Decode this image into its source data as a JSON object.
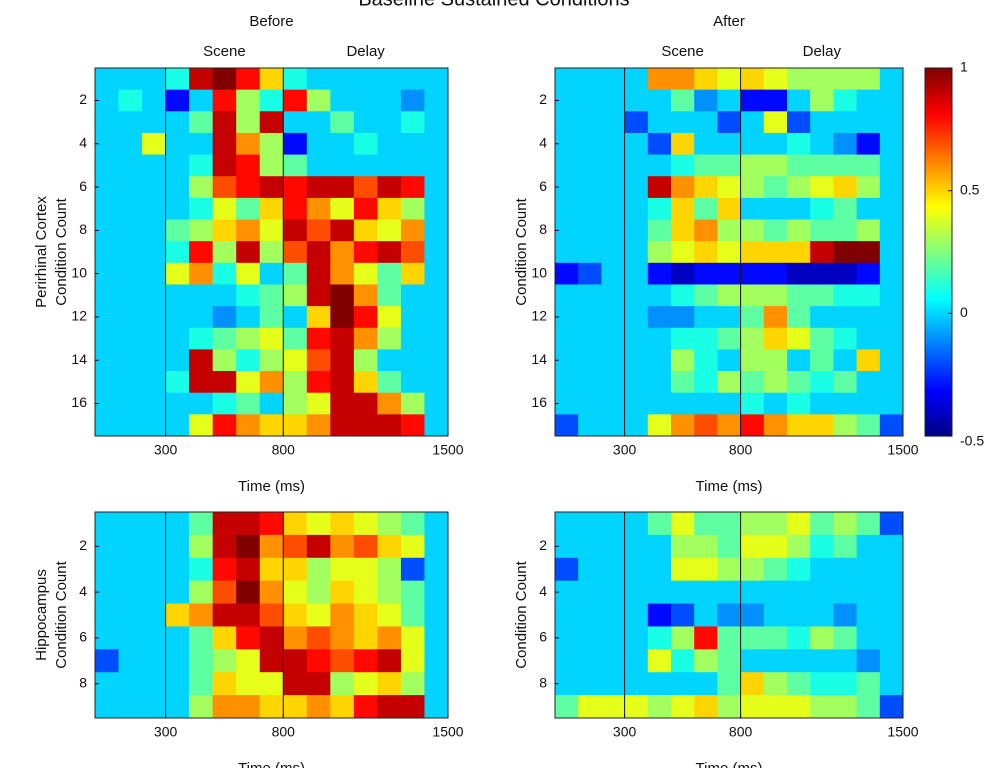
{
  "title": "Baseline Sustained Conditions",
  "chart_data": [
    {
      "type": "heatmap",
      "title": "Before",
      "row_label": "Perirhinal Cortex",
      "y_label": "Condition Count",
      "x_label": "Time (ms)",
      "annotations": [
        "Scene",
        "Delay"
      ],
      "vlines": [
        300,
        800
      ],
      "colormap": "jet",
      "clim": [
        -0.5,
        1
      ],
      "xlim": [
        0,
        1500
      ],
      "xticks": [
        300,
        800,
        1500
      ],
      "ylim": [
        0.5,
        17.5
      ],
      "yticks": [
        2,
        4,
        6,
        8,
        10,
        12,
        14,
        16
      ],
      "xbins": [
        0,
        100,
        200,
        300,
        400,
        500,
        600,
        700,
        800,
        900,
        1000,
        1100,
        1200,
        1300,
        1400,
        1500
      ],
      "z": [
        [
          0,
          0,
          0,
          0.1,
          0.9,
          1,
          0.8,
          0.5,
          0.1,
          0,
          0,
          0,
          0,
          0,
          0
        ],
        [
          0,
          0.1,
          0,
          -0.3,
          0,
          0.8,
          0.3,
          0.1,
          0.8,
          0.3,
          0,
          0,
          0,
          -0.1,
          0
        ],
        [
          0,
          0,
          0,
          0,
          0.2,
          0.9,
          0.3,
          0.9,
          0,
          0,
          0.2,
          0,
          0,
          0.1,
          0
        ],
        [
          0,
          0,
          0.4,
          0,
          0,
          0.9,
          0.6,
          0.3,
          -0.3,
          0,
          0,
          0.1,
          0,
          0,
          0
        ],
        [
          0,
          0,
          0,
          0,
          0.1,
          0.9,
          0.8,
          0.3,
          0.2,
          0,
          0,
          0,
          0,
          0,
          0
        ],
        [
          0,
          0,
          0,
          0,
          0.3,
          0.7,
          0.8,
          0.9,
          0.8,
          0.9,
          0.9,
          0.7,
          0.9,
          0.8,
          0
        ],
        [
          0,
          0,
          0,
          0,
          0.1,
          0.4,
          0.2,
          0.5,
          0.8,
          0.6,
          0.4,
          0.8,
          0.5,
          0.3,
          0
        ],
        [
          0,
          0,
          0,
          0.2,
          0.3,
          0.5,
          0.6,
          0.4,
          0.9,
          0.7,
          0.9,
          0.5,
          0.4,
          0.6,
          0
        ],
        [
          0,
          0,
          0,
          0.1,
          0.8,
          0.3,
          0.9,
          0.3,
          0.7,
          0.9,
          0.6,
          0.8,
          0.9,
          0.7,
          0
        ],
        [
          0,
          0,
          0,
          0.4,
          0.6,
          0.1,
          0.4,
          0,
          0.2,
          0.9,
          0.6,
          0.4,
          0.2,
          0.5,
          0
        ],
        [
          0,
          0,
          0,
          0,
          0,
          0,
          0.1,
          0.2,
          0.3,
          0.9,
          1,
          0.6,
          0.2,
          0,
          0
        ],
        [
          0,
          0,
          0,
          0,
          0,
          -0.1,
          0,
          0.2,
          0,
          0.5,
          1,
          0.8,
          0.4,
          0,
          0
        ],
        [
          0,
          0,
          0,
          0,
          0.1,
          0.2,
          0.3,
          0.4,
          0.2,
          0.8,
          0.9,
          0.6,
          0.3,
          0,
          0
        ],
        [
          0,
          0,
          0,
          0,
          0.9,
          0.3,
          0.1,
          0.3,
          0.4,
          0.7,
          0.9,
          0.3,
          0,
          0,
          0
        ],
        [
          0,
          0,
          0,
          0.1,
          0.9,
          0.9,
          0.4,
          0.6,
          0.3,
          0.8,
          0.9,
          0.5,
          0.2,
          0,
          0
        ],
        [
          0,
          0,
          0,
          0,
          0,
          0.1,
          0.2,
          0,
          0.3,
          0.4,
          0.9,
          0.9,
          0.6,
          0.3,
          0
        ],
        [
          0,
          0,
          0,
          0,
          0.4,
          0.8,
          0.6,
          0.5,
          0.5,
          0.6,
          0.9,
          0.9,
          0.9,
          0.8,
          0
        ]
      ]
    },
    {
      "type": "heatmap",
      "title": "After",
      "y_label": "Condition Count",
      "x_label": "Time (ms)",
      "annotations": [
        "Scene",
        "Delay"
      ],
      "vlines": [
        300,
        800
      ],
      "colormap": "jet",
      "clim": [
        -0.5,
        1
      ],
      "colorbar_ticks": [
        -0.5,
        0,
        0.5,
        1
      ],
      "xlim": [
        0,
        1500
      ],
      "xticks": [
        300,
        800,
        1500
      ],
      "ylim": [
        0.5,
        17.5
      ],
      "yticks": [
        2,
        4,
        6,
        8,
        10,
        12,
        14,
        16
      ],
      "xbins": [
        0,
        100,
        200,
        300,
        400,
        500,
        600,
        700,
        800,
        900,
        1000,
        1100,
        1200,
        1300,
        1400,
        1500
      ],
      "z": [
        [
          0,
          0,
          0,
          0,
          0.6,
          0.6,
          0.5,
          0.4,
          0.5,
          0.4,
          0.3,
          0.3,
          0.3,
          0.3,
          0
        ],
        [
          0,
          0,
          0,
          0,
          0,
          0.2,
          -0.1,
          0,
          -0.3,
          -0.3,
          0,
          0.3,
          0.1,
          0,
          0
        ],
        [
          0,
          0,
          0,
          -0.2,
          0,
          0,
          0,
          -0.2,
          0,
          0.4,
          -0.2,
          0,
          0,
          0,
          0
        ],
        [
          0,
          0,
          0,
          0,
          -0.2,
          0.5,
          0,
          0,
          0,
          0,
          0.1,
          0,
          -0.1,
          -0.3,
          0
        ],
        [
          0,
          0,
          0,
          0,
          0,
          0.1,
          0.2,
          0.2,
          0.3,
          0.3,
          0.2,
          0.2,
          0.2,
          0.2,
          0
        ],
        [
          0,
          0,
          0,
          0,
          0.9,
          0.6,
          0.5,
          0.4,
          0.3,
          0.2,
          0.3,
          0.4,
          0.5,
          0.3,
          0
        ],
        [
          0,
          0,
          0,
          0,
          0.1,
          0.5,
          0.2,
          0.5,
          0,
          0,
          0,
          0.1,
          0.2,
          0,
          0
        ],
        [
          0,
          0,
          0,
          0,
          0.2,
          0.5,
          0.6,
          0.3,
          0.3,
          0.2,
          0.3,
          0.2,
          0.2,
          0.3,
          0
        ],
        [
          0,
          0,
          0,
          0,
          0.3,
          0.4,
          0.5,
          0.4,
          0.5,
          0.5,
          0.5,
          0.9,
          1,
          1,
          0
        ],
        [
          -0.3,
          -0.2,
          0,
          0,
          -0.3,
          -0.4,
          -0.3,
          -0.3,
          -0.3,
          -0.3,
          -0.4,
          -0.4,
          -0.4,
          -0.3,
          0
        ],
        [
          0,
          0,
          0,
          0,
          0,
          0.1,
          0.2,
          0.3,
          0.3,
          0.3,
          0.2,
          0.2,
          0.1,
          0.1,
          0
        ],
        [
          0,
          0,
          0,
          0,
          -0.1,
          -0.1,
          0,
          0,
          0.2,
          0.6,
          0.2,
          0,
          0,
          0,
          0
        ],
        [
          0,
          0,
          0,
          0,
          0,
          0.1,
          0.1,
          0.2,
          0.3,
          0.5,
          0.4,
          0.2,
          0.1,
          0,
          0
        ],
        [
          0,
          0,
          0,
          0,
          0,
          0.3,
          0.1,
          0,
          0.3,
          0.3,
          0,
          0.2,
          0,
          0.5,
          0
        ],
        [
          0,
          0,
          0,
          0,
          0,
          0.2,
          0.1,
          0.3,
          0.2,
          0.3,
          0.2,
          0.1,
          0.2,
          0,
          0
        ],
        [
          0,
          0,
          0,
          0,
          0,
          0,
          0,
          0,
          0.1,
          0,
          0.1,
          0,
          0,
          0,
          0
        ],
        [
          -0.2,
          0,
          0,
          0,
          0.4,
          0.6,
          0.7,
          0.6,
          0.8,
          0.6,
          0.5,
          0.5,
          0.3,
          0.2,
          -0.2
        ]
      ]
    },
    {
      "type": "heatmap",
      "row_label": "Hippocampus",
      "y_label": "Condition Count",
      "x_label": "Time (ms)",
      "vlines": [
        300,
        800
      ],
      "colormap": "jet",
      "clim": [
        -0.5,
        1
      ],
      "xlim": [
        0,
        1500
      ],
      "xticks": [
        300,
        800,
        1500
      ],
      "ylim": [
        0.5,
        9.5
      ],
      "yticks": [
        2,
        4,
        6,
        8
      ],
      "xbins": [
        0,
        100,
        200,
        300,
        400,
        500,
        600,
        700,
        800,
        900,
        1000,
        1100,
        1200,
        1300,
        1400,
        1500
      ],
      "z": [
        [
          0,
          0,
          0,
          0,
          0.2,
          0.9,
          0.9,
          0.8,
          0.5,
          0.4,
          0.5,
          0.4,
          0.3,
          0.2,
          0
        ],
        [
          0,
          0,
          0,
          0,
          0.3,
          0.9,
          1,
          0.6,
          0.7,
          0.9,
          0.6,
          0.7,
          0.5,
          0.4,
          0
        ],
        [
          0,
          0,
          0,
          0,
          0.1,
          0.8,
          0.9,
          0.5,
          0.5,
          0.3,
          0.4,
          0.4,
          0.3,
          -0.2,
          0
        ],
        [
          0,
          0,
          0,
          0,
          0.3,
          0.7,
          1,
          0.6,
          0.4,
          0.3,
          0.5,
          0.4,
          0.3,
          0.2,
          0
        ],
        [
          0,
          0,
          0,
          0.5,
          0.6,
          0.9,
          0.9,
          0.7,
          0.5,
          0.4,
          0.6,
          0.5,
          0.4,
          0.2,
          0
        ],
        [
          0,
          0,
          0,
          0,
          0.2,
          0.5,
          0.8,
          0.9,
          0.6,
          0.7,
          0.6,
          0.5,
          0.6,
          0.4,
          0
        ],
        [
          -0.2,
          0,
          0,
          0,
          0.2,
          0.3,
          0.4,
          0.9,
          0.9,
          0.8,
          0.7,
          0.8,
          0.9,
          0.4,
          0
        ],
        [
          0,
          0,
          0,
          0,
          0.2,
          0.5,
          0.4,
          0.4,
          0.9,
          0.9,
          0.3,
          0.4,
          0.5,
          0.3,
          0
        ],
        [
          0,
          0,
          0,
          0,
          0.3,
          0.6,
          0.6,
          0.5,
          0.5,
          0.6,
          0.5,
          0.8,
          0.9,
          0.9,
          0
        ]
      ]
    },
    {
      "type": "heatmap",
      "y_label": "Condition Count",
      "x_label": "Time (ms)",
      "vlines": [
        300,
        800
      ],
      "colormap": "jet",
      "clim": [
        -0.5,
        1
      ],
      "xlim": [
        0,
        1500
      ],
      "xticks": [
        300,
        800,
        1500
      ],
      "ylim": [
        0.5,
        9.5
      ],
      "yticks": [
        2,
        4,
        6,
        8
      ],
      "xbins": [
        0,
        100,
        200,
        300,
        400,
        500,
        600,
        700,
        800,
        900,
        1000,
        1100,
        1200,
        1300,
        1400,
        1500
      ],
      "z": [
        [
          0,
          0,
          0,
          0,
          0.2,
          0.4,
          0.2,
          0.2,
          0.3,
          0.3,
          0.4,
          0.2,
          0.3,
          0.2,
          -0.2
        ],
        [
          0,
          0,
          0,
          0,
          0,
          0.3,
          0.3,
          0.2,
          0.4,
          0.4,
          0.3,
          0.1,
          0.2,
          0,
          0
        ],
        [
          -0.2,
          0,
          0,
          0,
          0,
          0.4,
          0.4,
          0.3,
          0.3,
          0.2,
          0.1,
          0,
          0,
          0,
          0
        ],
        [
          0,
          0,
          0,
          0,
          0,
          0,
          0,
          0,
          0,
          0,
          0,
          0,
          0,
          0,
          0
        ],
        [
          0,
          0,
          0,
          0,
          -0.3,
          -0.2,
          0,
          -0.1,
          -0.1,
          0,
          0,
          0,
          -0.1,
          0,
          0
        ],
        [
          0,
          0,
          0,
          0,
          0.1,
          0.3,
          0.8,
          0.2,
          0.2,
          0.2,
          0.1,
          0.3,
          0.2,
          0,
          0
        ],
        [
          0,
          0,
          0,
          0,
          0.4,
          0.1,
          0.3,
          0.2,
          0,
          0,
          0,
          0,
          0,
          -0.1,
          0
        ],
        [
          0,
          0,
          0,
          0,
          0,
          0,
          0,
          0.2,
          0.5,
          0.3,
          0.2,
          0.1,
          0.1,
          0.2,
          0
        ],
        [
          0.2,
          0.4,
          0.4,
          0.4,
          0.3,
          0.4,
          0.5,
          0.3,
          0.4,
          0.4,
          0.4,
          0.3,
          0.3,
          0.2,
          -0.2
        ]
      ]
    }
  ]
}
